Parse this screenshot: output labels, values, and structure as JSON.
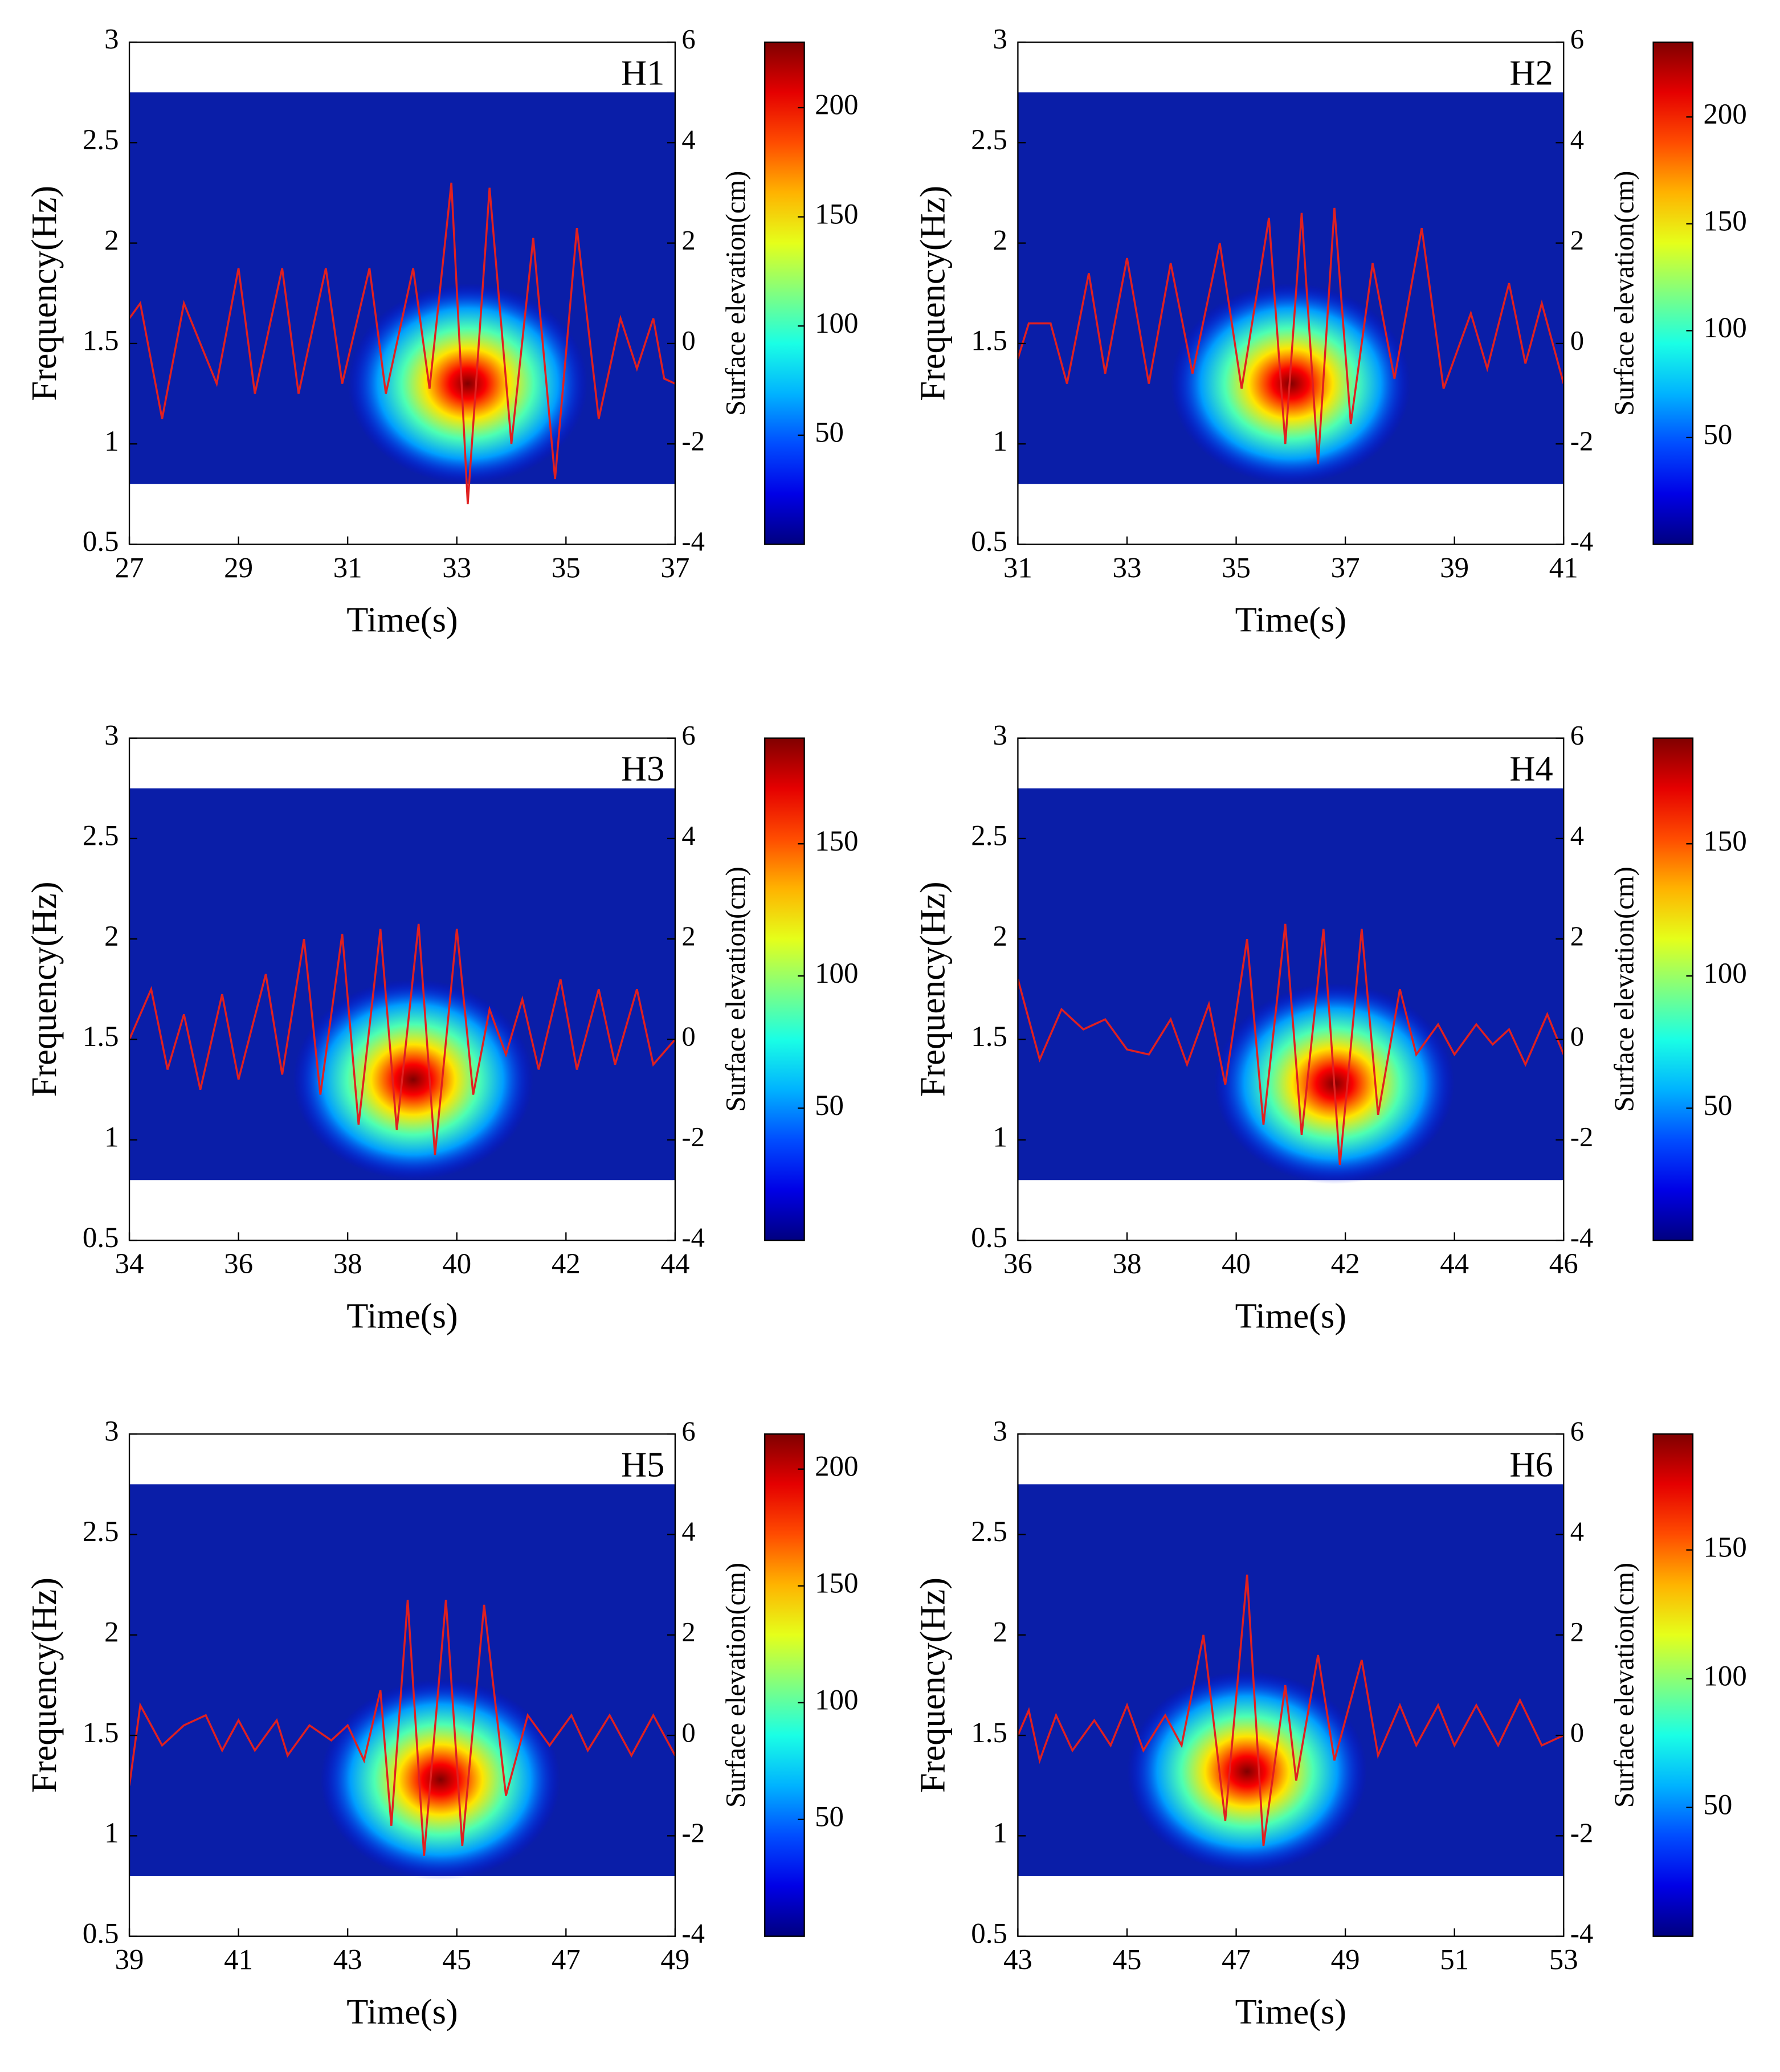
{
  "chart_data": [
    {
      "type": "wavelet",
      "label": "H1",
      "xlabel": "Time(s)",
      "ylabel": "Frequency(Hz)",
      "y2label": "Surface elevation(cm)",
      "xlim": [
        27,
        37
      ],
      "xticks": [
        27,
        29,
        31,
        33,
        35,
        37
      ],
      "ylim": [
        0.5,
        3
      ],
      "yticks": [
        0.5,
        1,
        1.5,
        2,
        2.5,
        3
      ],
      "y2lim": [
        -4,
        6
      ],
      "y2ticks": [
        -4,
        -2,
        0,
        2,
        4,
        6
      ],
      "clim": [
        0,
        230
      ],
      "cticks": [
        50,
        100,
        150,
        200
      ],
      "peak": {
        "time": 33.2,
        "frequency": 1.3,
        "value": 230
      },
      "elevation": {
        "color": "#e02020",
        "axis": "y2",
        "x": [
          27,
          27.2,
          27.6,
          28.0,
          28.3,
          28.6,
          29.0,
          29.3,
          29.8,
          30.1,
          30.6,
          30.9,
          31.4,
          31.7,
          32.2,
          32.5,
          32.9,
          33.2,
          33.6,
          34.0,
          34.4,
          34.8,
          35.2,
          35.6,
          36.0,
          36.3,
          36.6,
          36.8,
          37
        ],
        "values": [
          0.5,
          0.8,
          -1.5,
          0.8,
          0,
          -0.8,
          1.5,
          -1,
          1.5,
          -1,
          1.5,
          -0.8,
          1.5,
          -1,
          1.5,
          -0.9,
          3.2,
          -3.2,
          3.1,
          -2,
          2.1,
          -2.7,
          2.3,
          -1.5,
          0.5,
          -0.5,
          0.5,
          -0.7,
          -0.8
        ]
      }
    },
    {
      "type": "wavelet",
      "label": "H2",
      "xlabel": "Time(s)",
      "ylabel": "Frequency(Hz)",
      "y2label": "Surface elevation(cm)",
      "xlim": [
        31,
        41
      ],
      "xticks": [
        31,
        33,
        35,
        37,
        39,
        41
      ],
      "ylim": [
        0.5,
        3
      ],
      "yticks": [
        0.5,
        1,
        1.5,
        2,
        2.5,
        3
      ],
      "y2lim": [
        -4,
        6
      ],
      "y2ticks": [
        -4,
        -2,
        0,
        2,
        4,
        6
      ],
      "clim": [
        0,
        235
      ],
      "cticks": [
        50,
        100,
        150,
        200
      ],
      "peak": {
        "time": 36.0,
        "frequency": 1.3,
        "value": 235
      },
      "elevation": {
        "color": "#e02020",
        "axis": "y2",
        "x": [
          31,
          31.2,
          31.6,
          31.9,
          32.3,
          32.6,
          33.0,
          33.4,
          33.8,
          34.2,
          34.7,
          35.1,
          35.6,
          35.9,
          36.2,
          36.5,
          36.8,
          37.1,
          37.5,
          37.9,
          38.4,
          38.8,
          39.3,
          39.6,
          40.0,
          40.3,
          40.6,
          41
        ],
        "values": [
          -0.3,
          0.4,
          0.4,
          -0.8,
          1.4,
          -0.6,
          1.7,
          -0.8,
          1.6,
          -0.6,
          2.0,
          -0.9,
          2.5,
          -2.0,
          2.6,
          -2.4,
          2.7,
          -1.6,
          1.6,
          -0.7,
          2.3,
          -0.9,
          0.6,
          -0.5,
          1.2,
          -0.4,
          0.8,
          -0.8
        ]
      }
    },
    {
      "type": "wavelet",
      "label": "H3",
      "xlabel": "Time(s)",
      "ylabel": "Frequency(Hz)",
      "y2label": "Surface elevation(cm)",
      "xlim": [
        34,
        44
      ],
      "xticks": [
        34,
        36,
        38,
        40,
        42,
        44
      ],
      "ylim": [
        0.5,
        3
      ],
      "yticks": [
        0.5,
        1,
        1.5,
        2,
        2.5,
        3
      ],
      "y2lim": [
        -4,
        6
      ],
      "y2ticks": [
        -4,
        -2,
        0,
        2,
        4,
        6
      ],
      "clim": [
        0,
        190
      ],
      "cticks": [
        50,
        100,
        150
      ],
      "peak": {
        "time": 39.2,
        "frequency": 1.3,
        "value": 190
      },
      "elevation": {
        "color": "#e02020",
        "axis": "y2",
        "x": [
          34,
          34.4,
          34.7,
          35,
          35.3,
          35.7,
          36.0,
          36.5,
          36.8,
          37.2,
          37.5,
          37.9,
          38.2,
          38.6,
          38.9,
          39.3,
          39.6,
          40.0,
          40.3,
          40.6,
          40.9,
          41.2,
          41.5,
          41.9,
          42.2,
          42.6,
          42.9,
          43.3,
          43.6,
          44
        ],
        "values": [
          0,
          1.0,
          -0.6,
          0.5,
          -1.0,
          0.9,
          -0.8,
          1.3,
          -0.7,
          2.0,
          -1.1,
          2.1,
          -1.7,
          2.2,
          -1.8,
          2.3,
          -2.3,
          2.2,
          -1.1,
          0.6,
          -0.3,
          0.8,
          -0.6,
          1.2,
          -0.6,
          1.0,
          -0.5,
          1.0,
          -0.5,
          0
        ]
      }
    },
    {
      "type": "wavelet",
      "label": "H4",
      "xlabel": "Time(s)",
      "ylabel": "Frequency(Hz)",
      "y2label": "Surface elevation(cm)",
      "xlim": [
        36,
        46
      ],
      "xticks": [
        36,
        38,
        40,
        42,
        44,
        46
      ],
      "ylim": [
        0.5,
        3
      ],
      "yticks": [
        0.5,
        1,
        1.5,
        2,
        2.5,
        3
      ],
      "y2lim": [
        -4,
        6
      ],
      "y2ticks": [
        -4,
        -2,
        0,
        2,
        4,
        6
      ],
      "clim": [
        0,
        190
      ],
      "cticks": [
        50,
        100,
        150
      ],
      "peak": {
        "time": 41.8,
        "frequency": 1.28,
        "value": 190
      },
      "elevation": {
        "color": "#e02020",
        "axis": "y2",
        "x": [
          36,
          36.4,
          36.8,
          37.2,
          37.6,
          38,
          38.4,
          38.8,
          39.1,
          39.5,
          39.8,
          40.2,
          40.5,
          40.9,
          41.2,
          41.6,
          41.9,
          42.3,
          42.6,
          43.0,
          43.3,
          43.7,
          44,
          44.4,
          44.7,
          45,
          45.3,
          45.7,
          46
        ],
        "values": [
          1.2,
          -0.4,
          0.6,
          0.2,
          0.4,
          -0.2,
          -0.3,
          0.4,
          -0.5,
          0.7,
          -0.9,
          2.0,
          -1.7,
          2.3,
          -1.9,
          2.2,
          -2.5,
          2.2,
          -1.5,
          1.0,
          -0.3,
          0.3,
          -0.3,
          0.3,
          -0.1,
          0.2,
          -0.5,
          0.5,
          -0.3
        ]
      }
    },
    {
      "type": "wavelet",
      "label": "H5",
      "xlabel": "Time(s)",
      "ylabel": "Frequency(Hz)",
      "y2label": "Surface elevation(cm)",
      "xlim": [
        39,
        49
      ],
      "xticks": [
        39,
        41,
        43,
        45,
        47,
        49
      ],
      "ylim": [
        0.5,
        3
      ],
      "yticks": [
        0.5,
        1,
        1.5,
        2,
        2.5,
        3
      ],
      "y2lim": [
        -4,
        6
      ],
      "y2ticks": [
        -4,
        -2,
        0,
        2,
        4,
        6
      ],
      "clim": [
        0,
        215
      ],
      "cticks": [
        50,
        100,
        150,
        200
      ],
      "peak": {
        "time": 44.7,
        "frequency": 1.28,
        "value": 215
      },
      "elevation": {
        "color": "#e02020",
        "axis": "y2",
        "x": [
          39,
          39.2,
          39.6,
          40,
          40.4,
          40.7,
          41.0,
          41.3,
          41.7,
          41.9,
          42.3,
          42.7,
          43.0,
          43.3,
          43.6,
          43.8,
          44.1,
          44.4,
          44.8,
          45.1,
          45.5,
          45.9,
          46.3,
          46.7,
          47.1,
          47.4,
          47.8,
          48.2,
          48.6,
          49
        ],
        "values": [
          -1.0,
          0.6,
          -0.2,
          0.2,
          0.4,
          -0.3,
          0.3,
          -0.3,
          0.3,
          -0.4,
          0.2,
          -0.1,
          0.2,
          -0.5,
          0.9,
          -1.8,
          2.7,
          -2.4,
          2.7,
          -2.2,
          2.6,
          -1.2,
          0.4,
          -0.2,
          0.4,
          -0.3,
          0.4,
          -0.4,
          0.4,
          -0.4
        ]
      }
    },
    {
      "type": "wavelet",
      "label": "H6",
      "xlabel": "Time(s)",
      "ylabel": "Frequency(Hz)",
      "y2label": "Surface elevation(cm)",
      "xlim": [
        43,
        53
      ],
      "xticks": [
        43,
        45,
        47,
        49,
        51,
        53
      ],
      "ylim": [
        0.5,
        3
      ],
      "yticks": [
        0.5,
        1,
        1.5,
        2,
        2.5,
        3
      ],
      "y2lim": [
        -4,
        6
      ],
      "y2ticks": [
        -4,
        -2,
        0,
        2,
        4,
        6
      ],
      "clim": [
        0,
        195
      ],
      "cticks": [
        50,
        100,
        150
      ],
      "peak": {
        "time": 47.2,
        "frequency": 1.32,
        "value": 195
      },
      "elevation": {
        "color": "#e02020",
        "axis": "y2",
        "x": [
          43,
          43.2,
          43.4,
          43.7,
          44.0,
          44.4,
          44.7,
          45.0,
          45.3,
          45.7,
          46.0,
          46.4,
          46.8,
          47.2,
          47.5,
          47.9,
          48.1,
          48.5,
          48.8,
          49.3,
          49.6,
          50.0,
          50.3,
          50.7,
          51.0,
          51.4,
          51.8,
          52.2,
          52.6,
          53
        ],
        "values": [
          0,
          0.5,
          -0.5,
          0.4,
          -0.3,
          0.3,
          -0.2,
          0.6,
          -0.3,
          0.4,
          -0.2,
          2.0,
          -1.7,
          3.2,
          -2.2,
          1.0,
          -0.9,
          1.6,
          -0.5,
          1.5,
          -0.4,
          0.6,
          -0.2,
          0.6,
          -0.2,
          0.6,
          -0.2,
          0.7,
          -0.2,
          0
        ]
      }
    }
  ]
}
